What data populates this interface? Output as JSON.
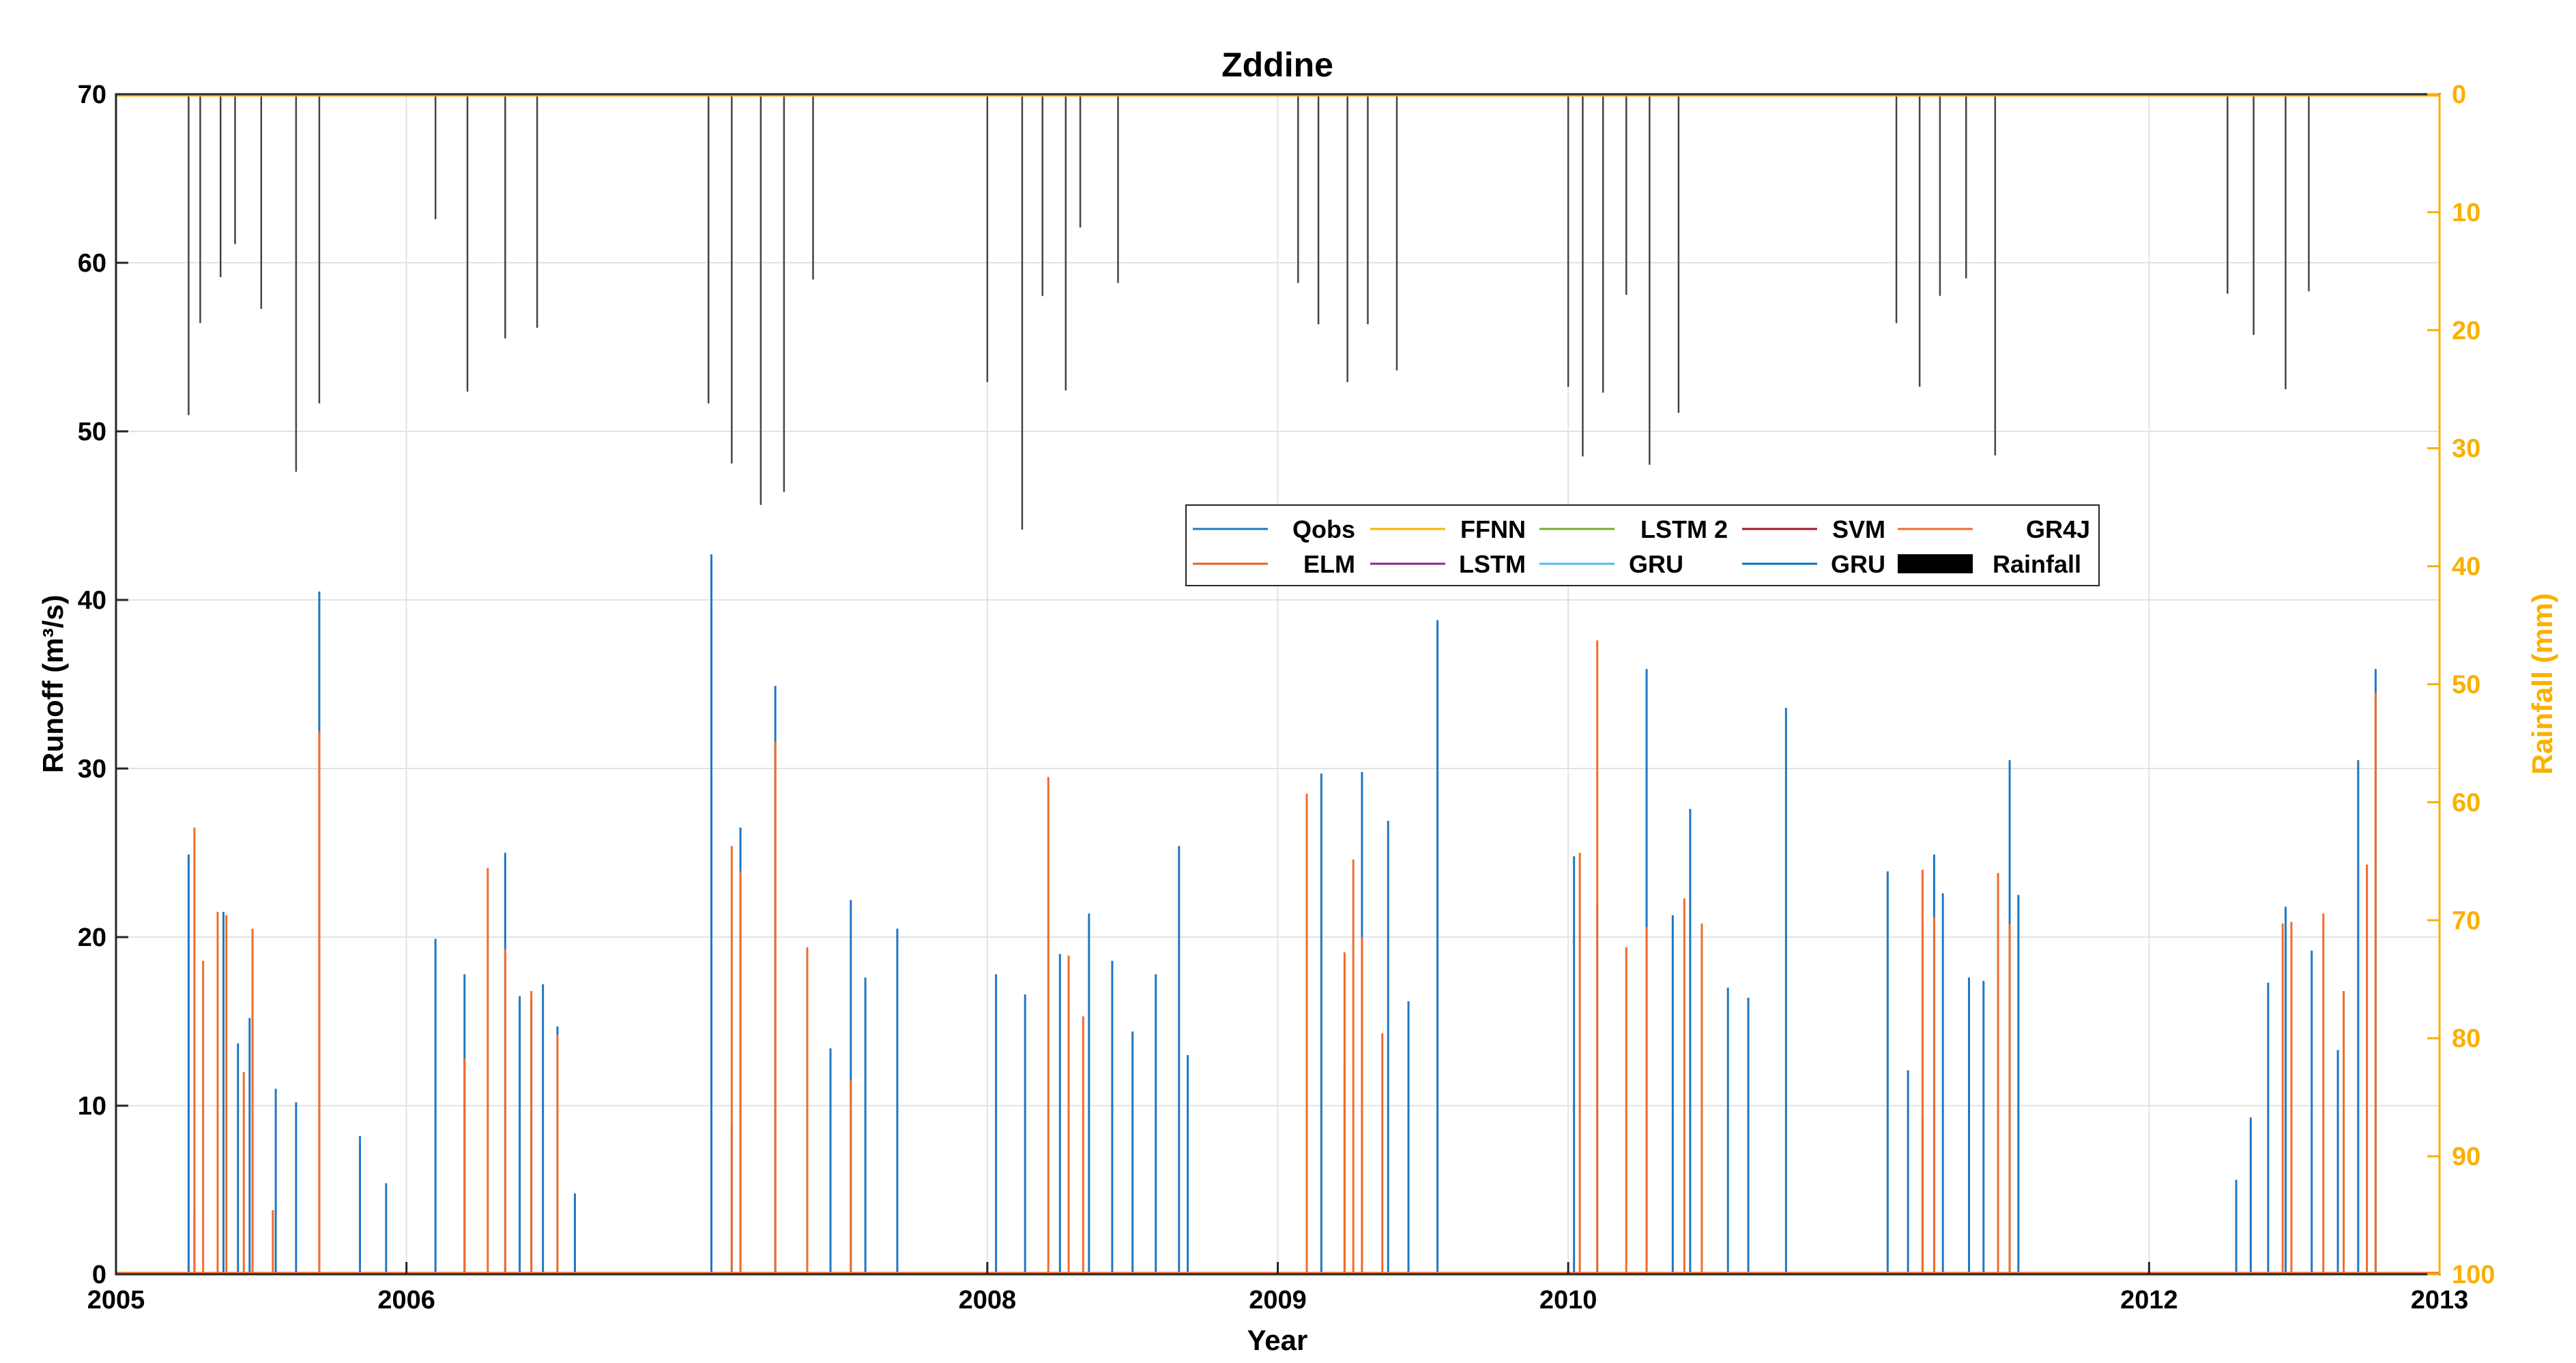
{
  "chart_data": {
    "type": "line",
    "title": "Zddine",
    "xlabel": "Year",
    "ylabel_left": "Runoff (m³/s)",
    "ylabel_right": "Rainfall (mm)",
    "xlim": [
      2005,
      2013
    ],
    "x_ticks": [
      "2005",
      "2006",
      "2008",
      "2009",
      "2010",
      "2012",
      "2013"
    ],
    "ylim_left": [
      0,
      70
    ],
    "y_ticks_left": [
      0,
      10,
      20,
      30,
      40,
      50,
      60,
      70
    ],
    "ylim_right": [
      0,
      100
    ],
    "y_ticks_right": [
      0,
      10,
      20,
      30,
      40,
      50,
      60,
      70,
      80,
      90,
      100
    ],
    "right_axis_reversed": true,
    "grid": true,
    "legend_position": "center-right",
    "colors": {
      "axis_right": "#F9B000",
      "Qobs": "#1f77c4",
      "FFNN": "#F9B000",
      "LSTM 2": "#77AC30",
      "SVM": "#A2142F",
      "GR4J": "#F26B2A",
      "ELM": "#E8601C",
      "LSTM": "#7E2F8E",
      "GRU_1": "#4DBEEE",
      "GRU_2": "#0072BD",
      "Rainfall": "#000000"
    },
    "legend": [
      "Qobs",
      "FFNN",
      "LSTM 2",
      "SVM",
      "GR4J",
      "ELM",
      "LSTM",
      "GRU",
      "GRU",
      "Rainfall"
    ],
    "series": [
      {
        "name": "Qobs",
        "x": [
          2005.25,
          2005.27,
          2005.37,
          2005.42,
          2005.46,
          2005.55,
          2005.62,
          2005.7,
          2005.84,
          2005.93,
          2006.1,
          2006.2,
          2006.34,
          2006.39,
          2006.43,
          2006.47,
          2006.52,
          2006.58,
          2007.05,
          2007.12,
          2007.15,
          2007.27,
          2007.38,
          2007.46,
          2007.53,
          2007.58,
          2007.69,
          2008.03,
          2008.13,
          2008.25,
          2008.35,
          2008.43,
          2008.5,
          2008.58,
          2008.66,
          2008.69,
          2009.15,
          2009.23,
          2009.29,
          2009.38,
          2009.45,
          2009.55,
          2010.02,
          2010.1,
          2010.27,
          2010.36,
          2010.42,
          2010.55,
          2010.62,
          2010.75,
          2011.1,
          2011.17,
          2011.22,
          2011.26,
          2011.29,
          2011.38,
          2011.43,
          2011.52,
          2011.55,
          2012.3,
          2012.35,
          2012.41,
          2012.47,
          2012.56,
          2012.65,
          2012.72,
          2012.78
        ],
        "values": [
          24.9,
          3.8,
          21.5,
          13.7,
          15.2,
          11,
          10.2,
          40.5,
          8.2,
          5.4,
          19.9,
          17.8,
          25,
          16.5,
          16.2,
          17.2,
          14.7,
          4.8,
          42.7,
          8.8,
          26.5,
          34.9,
          11.7,
          13.4,
          22.2,
          17.6,
          20.5,
          17.8,
          16.6,
          19,
          21.4,
          18.6,
          14.4,
          17.8,
          25.4,
          13,
          29.7,
          12.5,
          29.8,
          26.9,
          16.2,
          38.8,
          24.8,
          21.9,
          35.9,
          21.3,
          27.6,
          17,
          16.4,
          33.6,
          23.9,
          12.1,
          9.3,
          24.9,
          22.6,
          17.6,
          17.4,
          30.5,
          22.5,
          5.6,
          9.3,
          17.3,
          21.8,
          19.2,
          13.3,
          30.5,
          35.9
        ]
      },
      {
        "name": "GR4J",
        "x": [
          2005.27,
          2005.3,
          2005.35,
          2005.38,
          2005.44,
          2005.47,
          2005.54,
          2005.7,
          2006.2,
          2006.28,
          2006.34,
          2006.43,
          2006.52,
          2007.12,
          2007.15,
          2007.27,
          2007.38,
          2007.53,
          2008.21,
          2008.28,
          2008.33,
          2009.1,
          2009.23,
          2009.26,
          2009.29,
          2009.36,
          2010.04,
          2010.1,
          2010.2,
          2010.27,
          2010.4,
          2010.46,
          2011.22,
          2011.26,
          2011.48,
          2011.52,
          2012.46,
          2012.49,
          2012.6,
          2012.67,
          2012.75,
          2012.78
        ],
        "values": [
          26.5,
          18.6,
          21.5,
          21.3,
          12,
          20.5,
          3.8,
          32.2,
          12.8,
          24.1,
          19.3,
          16.8,
          14.2,
          25.4,
          23.9,
          31.6,
          19.4,
          11.5,
          29.5,
          18.9,
          15.3,
          28.5,
          19.1,
          24.6,
          20,
          14.3,
          25,
          37.6,
          19.4,
          20.6,
          22.3,
          20.8,
          24,
          21.2,
          23.8,
          20.8,
          20.8,
          20.9,
          21.4,
          16.8,
          24.3,
          34.5
        ]
      }
    ],
    "rainfall": {
      "name": "Rainfall",
      "axis": "right",
      "x": [
        2005.25,
        2005.29,
        2005.36,
        2005.41,
        2005.5,
        2005.62,
        2005.7,
        2006.1,
        2006.21,
        2006.34,
        2006.45,
        2007.04,
        2007.12,
        2007.22,
        2007.3,
        2007.4,
        2008.0,
        2008.12,
        2008.19,
        2008.27,
        2008.32,
        2008.45,
        2009.07,
        2009.14,
        2009.24,
        2009.31,
        2009.41,
        2010.0,
        2010.05,
        2010.12,
        2010.2,
        2010.28,
        2010.38,
        2011.13,
        2011.21,
        2011.28,
        2011.37,
        2011.47,
        2012.27,
        2012.36,
        2012.47,
        2012.55
      ],
      "values": [
        27.2,
        19.4,
        15.5,
        12.7,
        18.2,
        32,
        26.2,
        10.6,
        25.2,
        20.7,
        19.8,
        26.2,
        31.3,
        34.8,
        33.7,
        15.7,
        24.4,
        36.9,
        17.1,
        25.1,
        11.3,
        16,
        16,
        19.5,
        24.4,
        19.5,
        23.4,
        24.8,
        30.7,
        25.3,
        17,
        31.4,
        27,
        19.4,
        24.8,
        17.1,
        15.6,
        30.6,
        16.9,
        20.4,
        25,
        16.7
      ]
    }
  }
}
